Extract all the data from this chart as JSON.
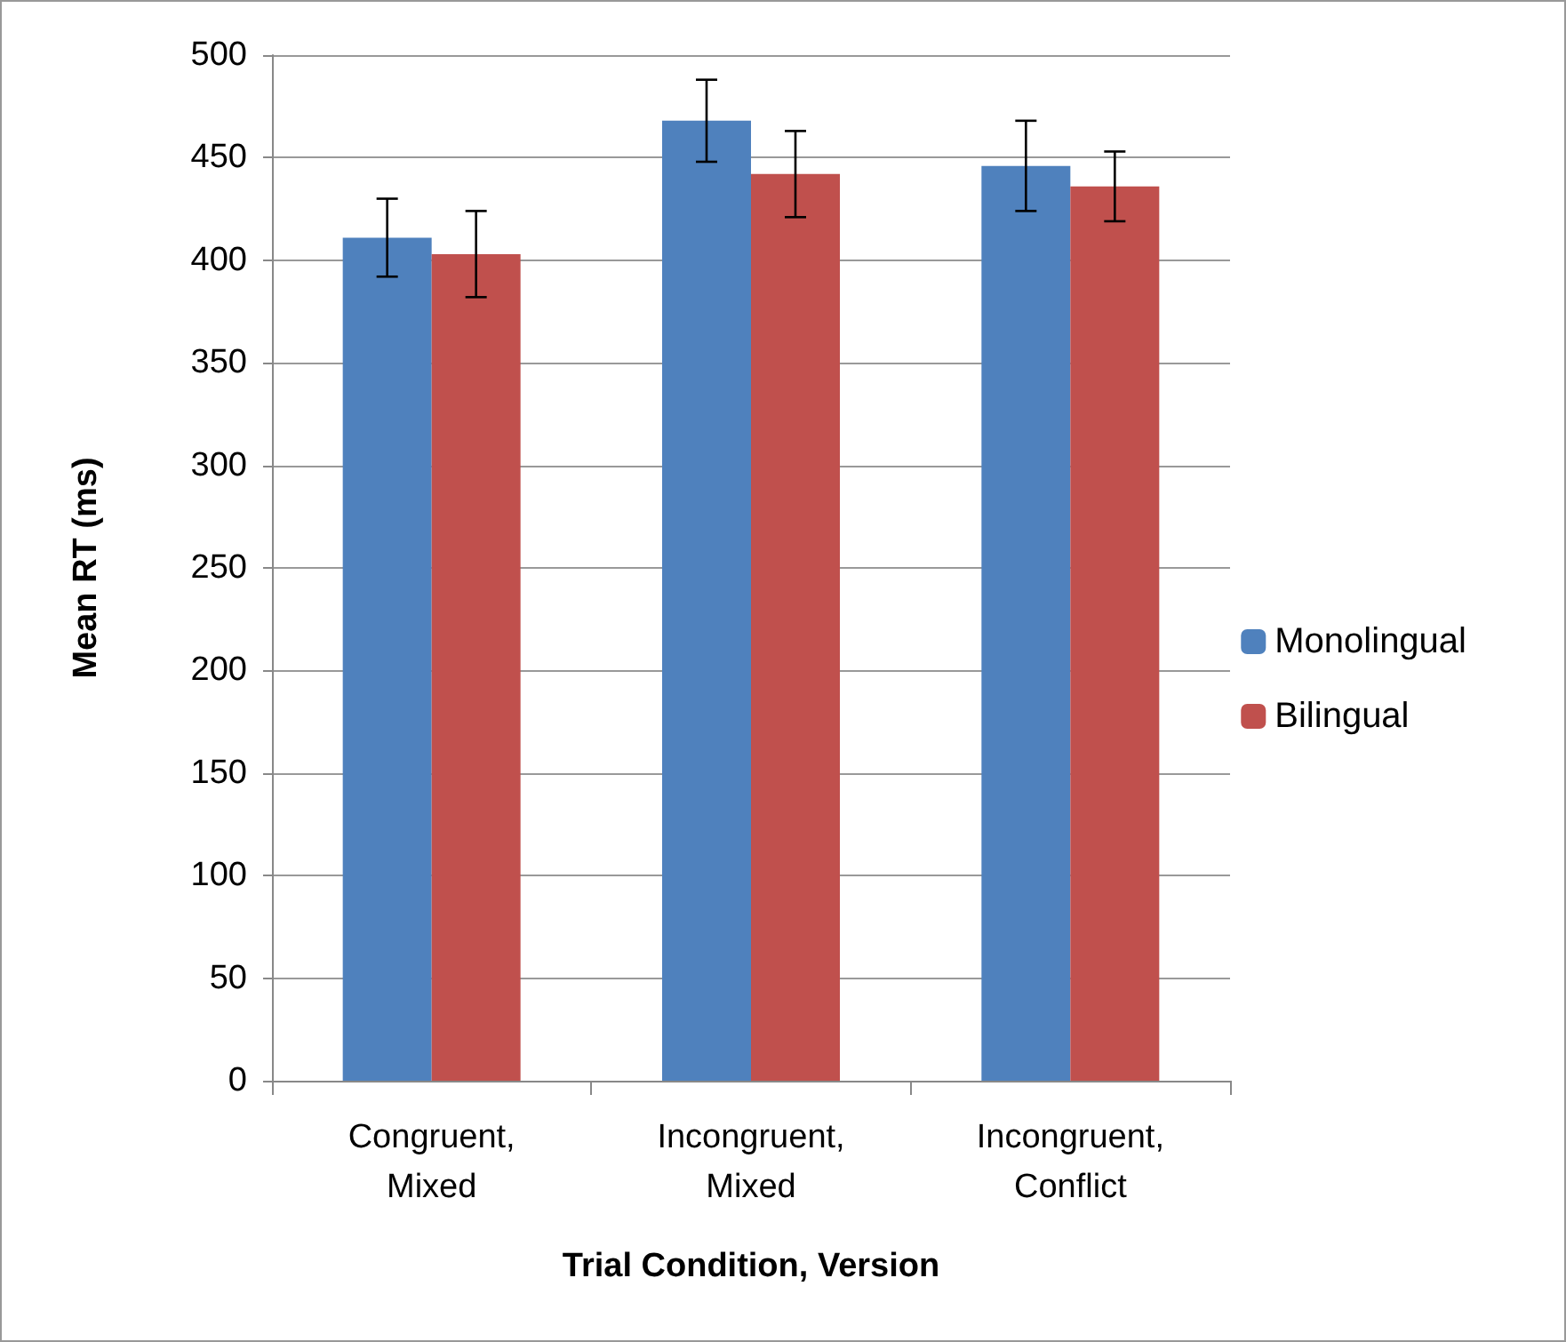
{
  "chart_data": {
    "type": "bar",
    "xlabel": "Trial Condition, Version",
    "ylabel": "Mean RT (ms)",
    "categories": [
      "Congruent,\nMixed",
      "Incongruent,\nMixed",
      "Incongruent,\nConflict"
    ],
    "series": [
      {
        "name": "Monolingual",
        "color": "#4f81bd",
        "values": [
          411,
          468,
          446
        ],
        "errors": [
          19,
          20,
          22
        ]
      },
      {
        "name": "Bilingual",
        "color": "#c0504d",
        "values": [
          403,
          442,
          436
        ],
        "errors": [
          21,
          21,
          17
        ]
      }
    ],
    "ylim": [
      0,
      500
    ],
    "yticks": [
      0,
      50,
      100,
      150,
      200,
      250,
      300,
      350,
      400,
      450,
      500
    ],
    "grid": "y",
    "legend": "right"
  }
}
